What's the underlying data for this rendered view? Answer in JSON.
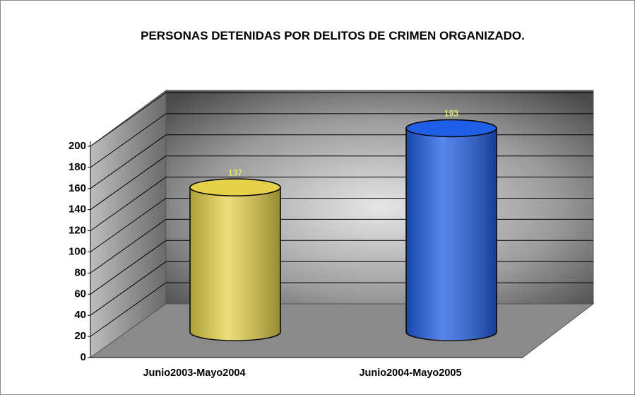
{
  "chart_data": {
    "type": "bar3d",
    "title": "PERSONAS DETENIDAS POR DELITOS DE CRIMEN ORGANIZADO.",
    "categories": [
      "Junio2003-Mayo2004",
      "Junio2004-Mayo2005"
    ],
    "values": [
      137,
      193
    ],
    "colors": [
      "#e6d24a",
      "#1f5ee6"
    ],
    "ylim": [
      0,
      200
    ],
    "yticks": [
      0,
      20,
      40,
      60,
      80,
      100,
      120,
      140,
      160,
      180,
      200
    ],
    "grid": true
  }
}
